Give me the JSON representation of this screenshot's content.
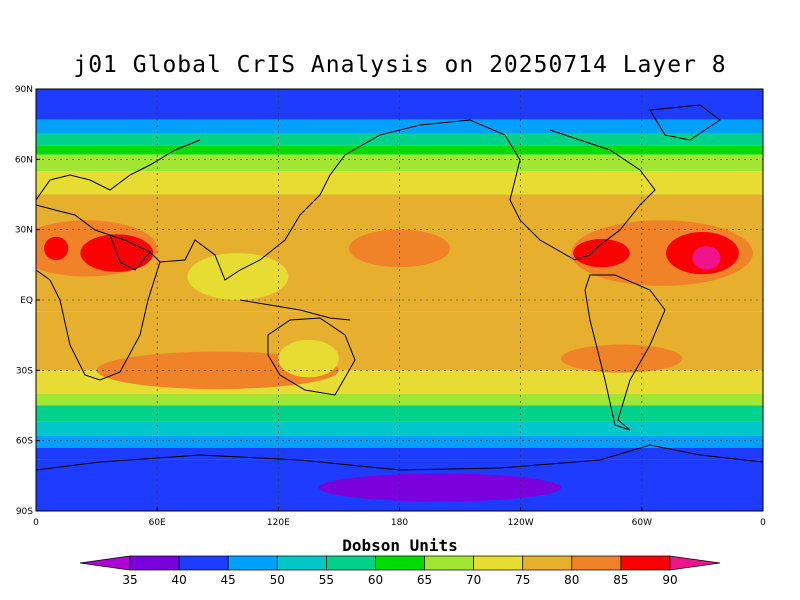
{
  "title": "j01 Global CrIS Analysis on 20250714 Layer 8",
  "chart_data": {
    "type": "heatmap",
    "title": "j01 Global CrIS Analysis on 20250714 Layer 8",
    "lat_ticks": [
      "90N",
      "60N",
      "30N",
      "EQ",
      "30S",
      "60S",
      "90S"
    ],
    "lon_ticks": [
      "0",
      "60E",
      "120E",
      "180",
      "120W",
      "60W",
      "0"
    ],
    "lat_range": [
      -90,
      90
    ],
    "lon_range": [
      0,
      360
    ],
    "grid": true,
    "colorbar": {
      "title": "Dobson Units",
      "levels": [
        "35",
        "40",
        "45",
        "50",
        "55",
        "60",
        "65",
        "70",
        "75",
        "80",
        "85",
        "90"
      ],
      "colors": [
        "#b000d8",
        "#7a00dc",
        "#1e3cff",
        "#00a0ff",
        "#00c8c8",
        "#00d28c",
        "#00dc00",
        "#a0e632",
        "#e6dc32",
        "#e6af2d",
        "#f08228",
        "#fa0000",
        "#f0148c"
      ]
    },
    "ozone_bands": [
      {
        "lat": [
          90,
          77
        ],
        "du": 40
      },
      {
        "lat": [
          77,
          71
        ],
        "du": 45
      },
      {
        "lat": [
          71,
          66
        ],
        "du": 55
      },
      {
        "lat": [
          66,
          62
        ],
        "du": 60
      },
      {
        "lat": [
          62,
          55
        ],
        "du": 65
      },
      {
        "lat": [
          55,
          45
        ],
        "du": 70
      },
      {
        "lat": [
          45,
          -5
        ],
        "du": 75
      },
      {
        "lat": [
          -5,
          -30
        ],
        "du": 75
      },
      {
        "lat": [
          -30,
          -40
        ],
        "du": 70
      },
      {
        "lat": [
          -40,
          -45
        ],
        "du": 65
      },
      {
        "lat": [
          -45,
          -52
        ],
        "du": 55
      },
      {
        "lat": [
          -52,
          -58
        ],
        "du": 50
      },
      {
        "lat": [
          -58,
          -63
        ],
        "du": 45
      },
      {
        "lat": [
          -63,
          -68
        ],
        "du": 40
      },
      {
        "lat": [
          -68,
          -90
        ],
        "du": 40
      }
    ],
    "ozone_patches": [
      {
        "lon": 25,
        "lat": 22,
        "rx": 35,
        "ry": 12,
        "du": 80
      },
      {
        "lon": 40,
        "lat": 20,
        "rx": 18,
        "ry": 8,
        "du": 85
      },
      {
        "lon": 10,
        "lat": 22,
        "rx": 6,
        "ry": 5,
        "du": 85
      },
      {
        "lon": 310,
        "lat": 20,
        "rx": 45,
        "ry": 14,
        "du": 80
      },
      {
        "lon": 330,
        "lat": 20,
        "rx": 18,
        "ry": 9,
        "du": 85
      },
      {
        "lon": 332,
        "lat": 18,
        "rx": 7,
        "ry": 5,
        "du": 90
      },
      {
        "lon": 280,
        "lat": 20,
        "rx": 14,
        "ry": 6,
        "du": 85
      },
      {
        "lon": 180,
        "lat": 22,
        "rx": 25,
        "ry": 8,
        "du": 80
      },
      {
        "lon": 90,
        "lat": -30,
        "rx": 60,
        "ry": 8,
        "du": 80
      },
      {
        "lon": 290,
        "lat": -25,
        "rx": 30,
        "ry": 6,
        "du": 80
      },
      {
        "lon": 135,
        "lat": -25,
        "rx": 15,
        "ry": 8,
        "du": 70
      },
      {
        "lon": 100,
        "lat": 10,
        "rx": 25,
        "ry": 10,
        "du": 70
      },
      {
        "lon": 200,
        "lat": -80,
        "rx": 60,
        "ry": 6,
        "du": 35
      }
    ]
  }
}
